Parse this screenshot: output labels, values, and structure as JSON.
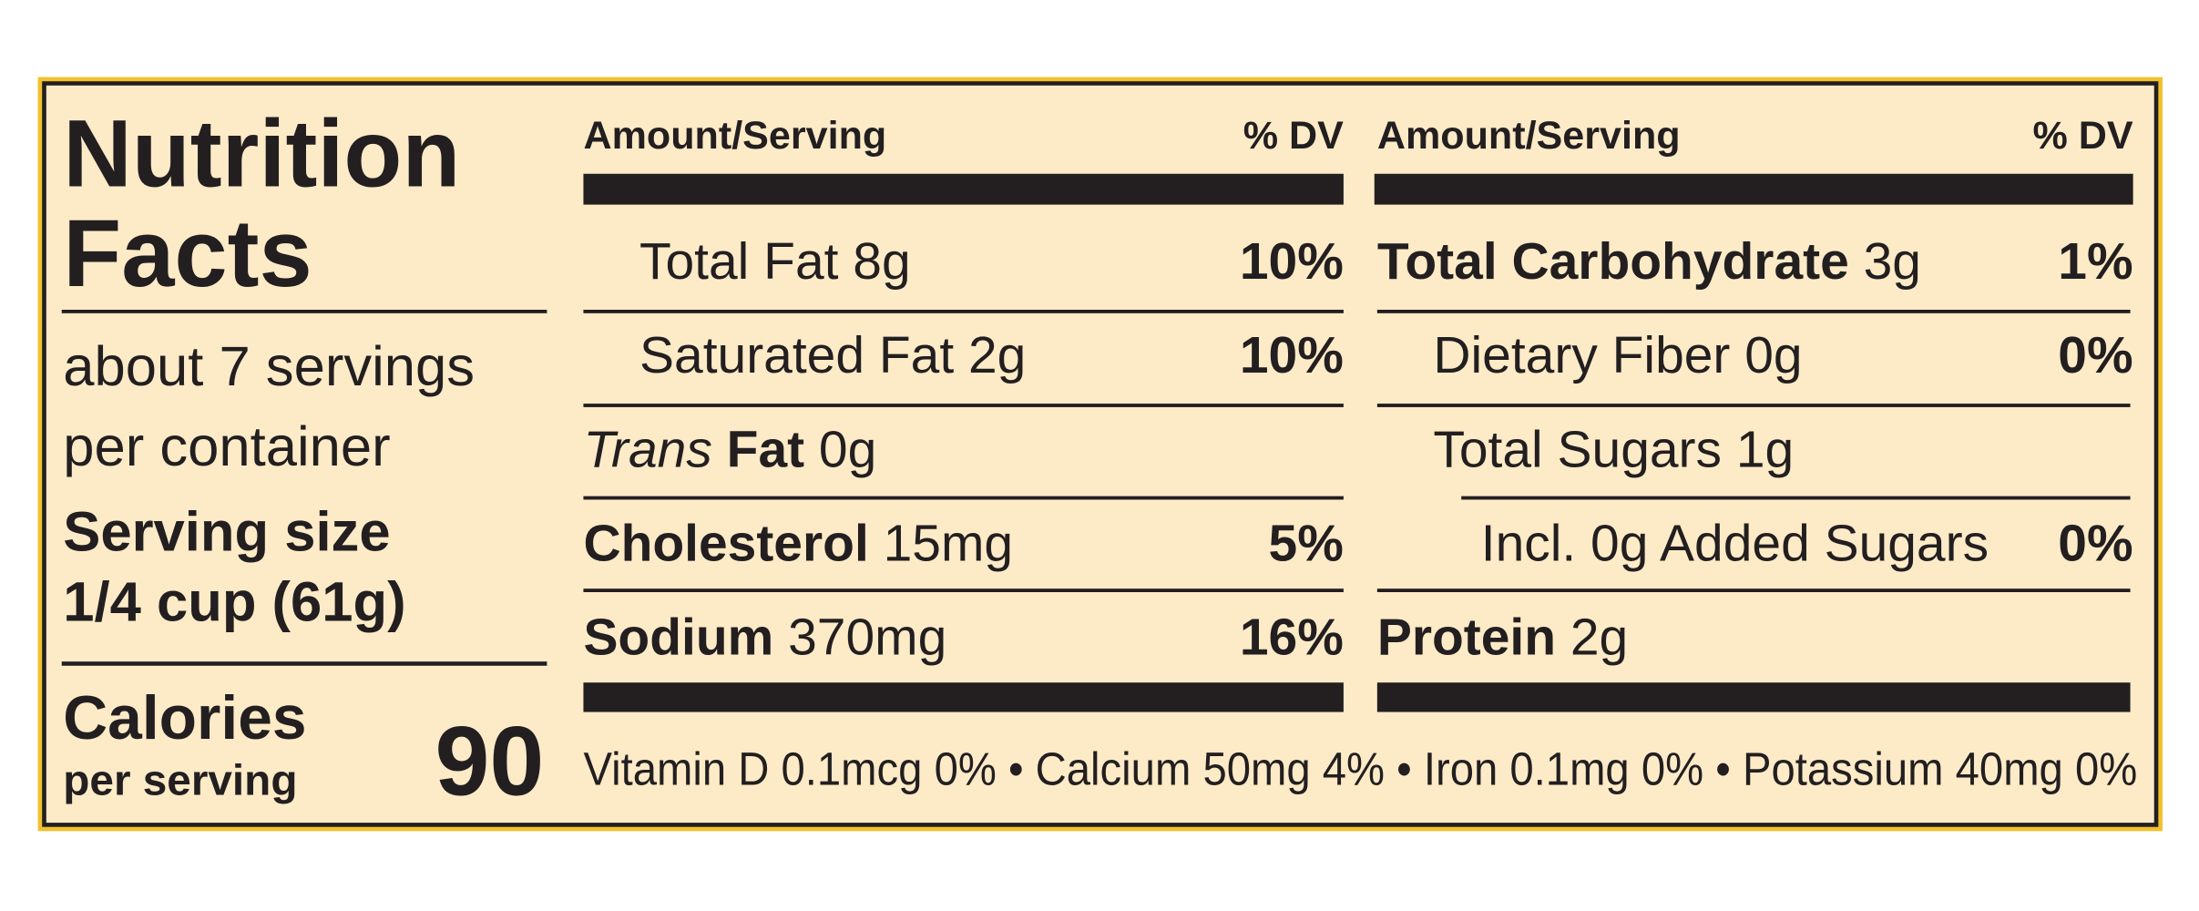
{
  "title": [
    "Nutrition",
    "Facts"
  ],
  "servings": [
    "about 7 servings",
    "per container"
  ],
  "serving_size": {
    "label": "Serving size",
    "amount": "1/4 cup (61g)"
  },
  "calories": {
    "label": "Calories",
    "sublabel": "per serving",
    "value": 90
  },
  "columns": [
    {
      "amount_header": "Amount/Serving",
      "dv_header": "% DV",
      "rows": [
        {
          "name": "Total Fat",
          "amount": "8g",
          "dv": "10%"
        },
        {
          "name": "Saturated Fat",
          "amount": "2g",
          "dv": "10%"
        },
        {
          "name_italic": "Trans",
          "name": "Fat",
          "amount": "0g"
        },
        {
          "name": "Cholesterol",
          "amount": "15mg",
          "dv": "5%"
        },
        {
          "name": "Sodium",
          "amount": "370mg",
          "dv": "16%"
        }
      ]
    },
    {
      "amount_header": "Amount/Serving",
      "dv_header": "% DV",
      "rows": [
        {
          "name": "Total Carbohydrate",
          "amount": "3g",
          "dv": "1%"
        },
        {
          "name": "Dietary Fiber",
          "amount": "0g",
          "dv": "0%"
        },
        {
          "name": "Total Sugars",
          "amount": "1g"
        },
        {
          "name": "Incl. 0g Added Sugars",
          "dv": "0%"
        },
        {
          "name": "Protein",
          "amount": "2g"
        }
      ]
    }
  ],
  "vitamins": [
    "Vitamin D 0.1mcg 0%",
    "Calcium 50mg 4%",
    "Iron 0.1mg 0%",
    "Potassium 40mg 0%"
  ],
  "separator": "•"
}
